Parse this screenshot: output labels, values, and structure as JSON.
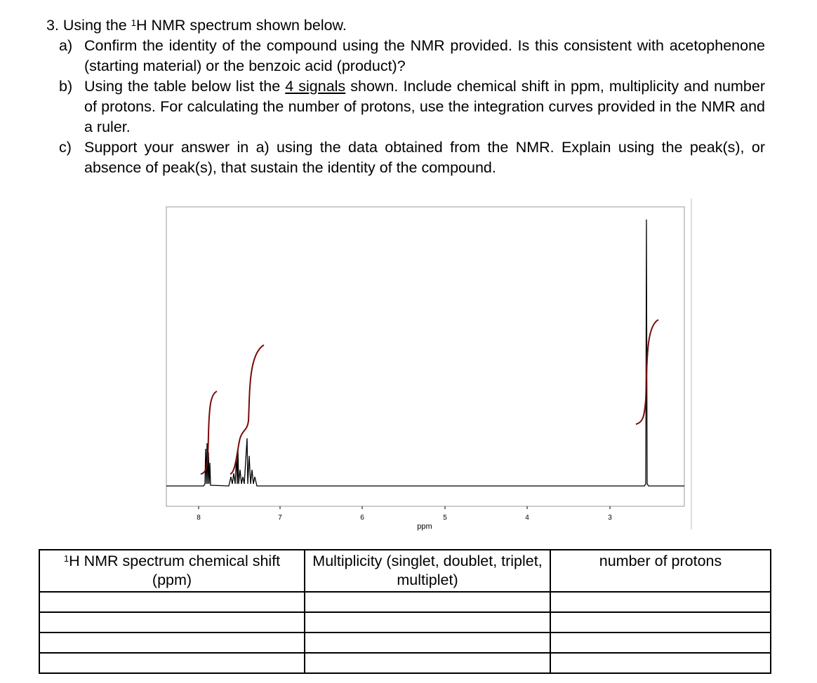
{
  "question": {
    "heading_pre": "3. Using the ",
    "heading_sup": "1",
    "heading_post": "H NMR spectrum shown below.",
    "parts": [
      {
        "label": "a)",
        "text": "Confirm the identity of the compound using the NMR provided. Is this consistent with acetophenone (starting material) or the benzoic acid (product)?"
      },
      {
        "label": "b)",
        "text_pre": "Using the table below list the ",
        "text_underlined": "4 signals",
        "text_post": " shown. Include chemical shift in ppm, multiplicity and number of protons. For calculating the number of protons, use the integration curves provided in the NMR and a ruler."
      },
      {
        "label": "c)",
        "text": "Support your answer in a) using the data obtained from the NMR. Explain using the peak(s), or absence of peak(s), that sustain the identity of the compound."
      }
    ]
  },
  "spectrum": {
    "axis_label": "ppm",
    "ticks": [
      "8",
      "7",
      "6",
      "5",
      "4",
      "3"
    ]
  },
  "table": {
    "headers": [
      {
        "sup": "1",
        "text": "H NMR spectrum chemical shift (ppm)"
      },
      {
        "text": "Multiplicity (singlet, doublet, triplet, multiplet)"
      },
      {
        "text": "number of protons"
      }
    ]
  }
}
